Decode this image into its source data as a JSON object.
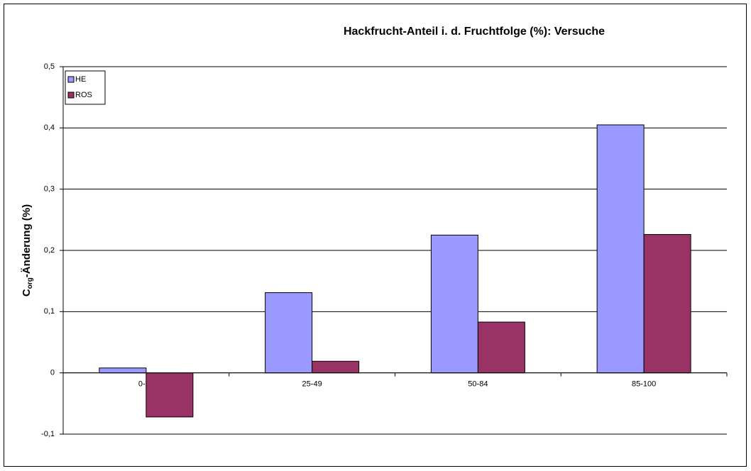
{
  "chart_data": {
    "type": "bar",
    "title": "Hackfrucht-Anteil i. d. Fruchtfolge (%): Versuche",
    "y_label": {
      "main": "C",
      "sub": "org",
      "rest": "-Änderung (%)"
    },
    "categories": [
      "0-24",
      "25-49",
      "50-84",
      "85-100"
    ],
    "series": [
      {
        "name": "HE",
        "color": "#9999ff",
        "values": [
          0.008,
          0.131,
          0.225,
          0.405
        ]
      },
      {
        "name": "ROS",
        "color": "#993366",
        "values": [
          -0.072,
          0.019,
          0.083,
          0.226
        ]
      }
    ],
    "ylim": [
      -0.1,
      0.5
    ],
    "yticks": [
      {
        "value": -0.1,
        "label": "-0,1"
      },
      0,
      {
        "value": 0.1,
        "label": "0,1"
      },
      {
        "value": 0.2,
        "label": "0,2"
      },
      {
        "value": 0.3,
        "label": "0,3"
      },
      {
        "value": 0.4,
        "label": "0,4"
      },
      {
        "value": 0.5,
        "label": "0,5"
      }
    ],
    "grid": true,
    "legend": "top-left"
  }
}
